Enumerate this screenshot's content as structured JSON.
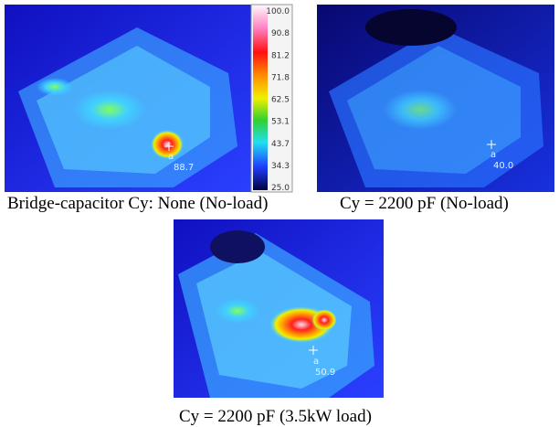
{
  "images": [
    {
      "caption": "Bridge-capacitor Cy: None (No-load)",
      "marker": {
        "label": "a",
        "value": "88.7"
      }
    },
    {
      "caption": "Cy = 2200 pF (No-load)",
      "marker": {
        "label": "a",
        "value": "40.0"
      }
    },
    {
      "caption": "Cy = 2200 pF (3.5kW load)",
      "marker": {
        "label": "a",
        "value": "50.9"
      }
    }
  ],
  "color_scale": {
    "labels": [
      "100.0",
      "90.8",
      "81.2",
      "71.8",
      "62.5",
      "53.1",
      "43.7",
      "34.3",
      "25.0"
    ]
  }
}
